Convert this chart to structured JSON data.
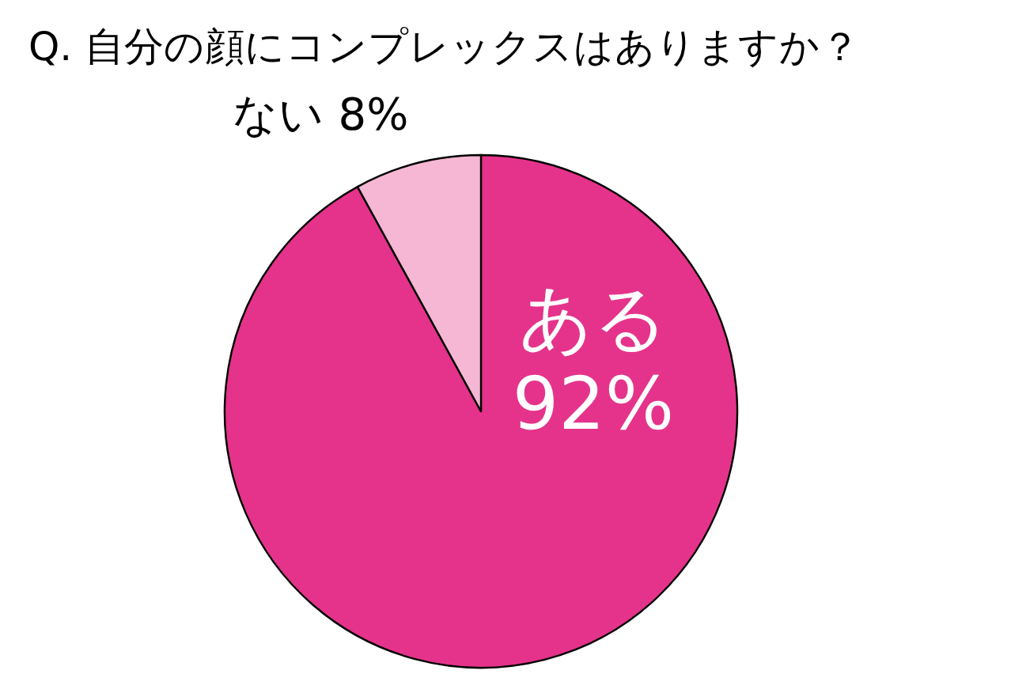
{
  "chart_data": {
    "type": "pie",
    "title": "Q. 自分の顔にコンプレックスはありますか？",
    "categories": [
      "ある",
      "ない"
    ],
    "values": [
      92,
      8
    ],
    "value_labels": [
      "92%",
      "8%"
    ],
    "colors": [
      "#e5338b",
      "#f5b7d3"
    ],
    "legend": false
  }
}
